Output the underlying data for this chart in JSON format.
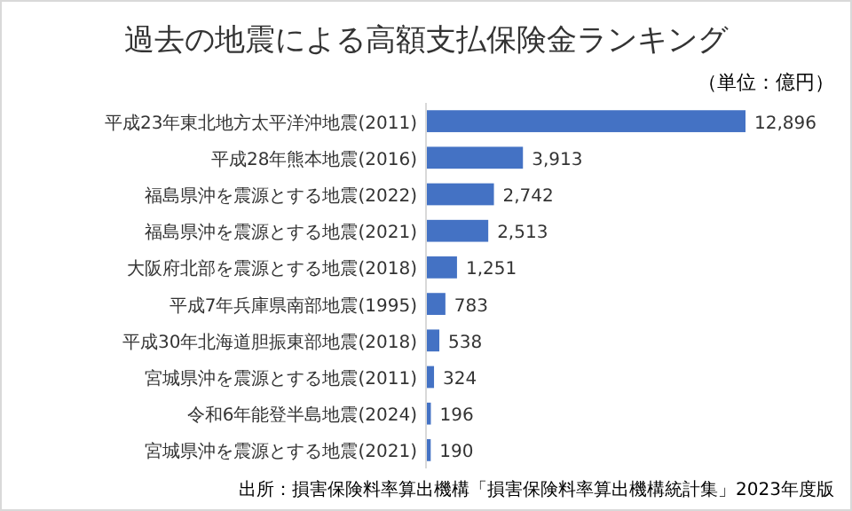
{
  "chart_data": {
    "type": "bar",
    "orientation": "horizontal",
    "title": "過去の地震による高額支払保険金ランキング",
    "annotations": [
      "（単位：億円）",
      "出所：損害保険料率算出機構「損害保険料率算出機構統計集」2023年度版"
    ],
    "categories": [
      "平成23年東北地方太平洋沖地震(2011)",
      "平成28年熊本地震(2016)",
      "福島県沖を震源とする地震(2022)",
      "福島県沖を震源とする地震(2021)",
      "大阪府北部を震源とする地震(2018)",
      "平成7年兵庫県南部地震(1995)",
      "平成30年北海道胆振東部地震(2018)",
      "宮城県沖を震源とする地震(2011)",
      "令和6年能登半島地震(2024)",
      "宮城県沖を震源とする地震(2021)"
    ],
    "values": [
      12896,
      3913,
      2742,
      2513,
      1251,
      783,
      538,
      324,
      196,
      190
    ],
    "value_labels": [
      "12,896",
      "3,913",
      "2,742",
      "2,513",
      "1,251",
      "783",
      "538",
      "324",
      "196",
      "190"
    ],
    "color": "#4472c4"
  }
}
